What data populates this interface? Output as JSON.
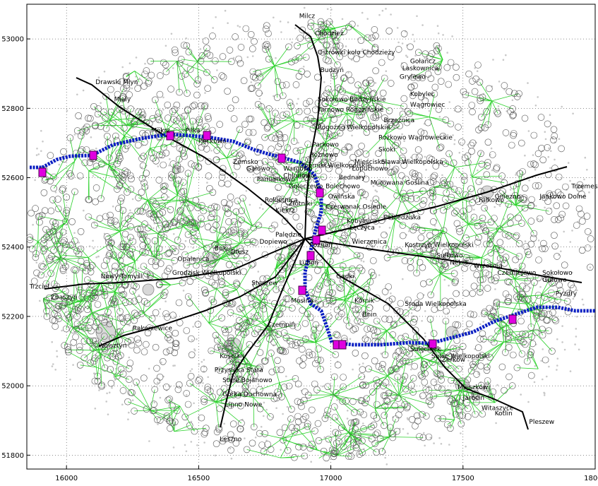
{
  "axes": {
    "x_ticks": [
      "16000",
      "16500",
      "17000",
      "17500",
      "18000"
    ],
    "y_ticks": [
      "53000",
      "52800",
      "52600",
      "52400",
      "52200",
      "52000",
      "51800"
    ]
  },
  "colors": {
    "edges": "#2bd12b",
    "river": "#0b1fc2",
    "stations": "#e000e0",
    "roads": "#000000"
  },
  "places": [
    {
      "name": "Milcz",
      "x": 16880,
      "y": 53060
    },
    {
      "name": "Chodzież",
      "x": 16940,
      "y": 53010
    },
    {
      "name": "Ostrówki koło Chodzieży",
      "x": 16950,
      "y": 52955
    },
    {
      "name": "Budzyń",
      "x": 16960,
      "y": 52905
    },
    {
      "name": "Sokołowo Budzyńskie",
      "x": 16950,
      "y": 52820
    },
    {
      "name": "Tarnowo Rogozińskie",
      "x": 16950,
      "y": 52790
    },
    {
      "name": "Rogoźno Wielkopolskie",
      "x": 16950,
      "y": 52740
    },
    {
      "name": "Parkowo",
      "x": 16930,
      "y": 52690
    },
    {
      "name": "Rożnowo",
      "x": 16920,
      "y": 52660
    },
    {
      "name": "Oborniki Wielkopolskie",
      "x": 16880,
      "y": 52630
    },
    {
      "name": "Gołańcz",
      "x": 17300,
      "y": 52930
    },
    {
      "name": "Laskownica",
      "x": 17270,
      "y": 52910
    },
    {
      "name": "Grylewo",
      "x": 17260,
      "y": 52885
    },
    {
      "name": "Kobylec",
      "x": 17300,
      "y": 52835
    },
    {
      "name": "Wągrowiec",
      "x": 17300,
      "y": 52805
    },
    {
      "name": "Brzeźnica",
      "x": 17200,
      "y": 52760
    },
    {
      "name": "Rożkowo Wągrowieckie",
      "x": 17180,
      "y": 52710
    },
    {
      "name": "Skoki",
      "x": 17180,
      "y": 52675
    },
    {
      "name": "Mieścisko",
      "x": 17090,
      "y": 52640
    },
    {
      "name": "Sława Wielkopolska",
      "x": 17190,
      "y": 52640
    },
    {
      "name": "Łopuchowo",
      "x": 17080,
      "y": 52620
    },
    {
      "name": "Drawski Młyn",
      "x": 16110,
      "y": 52870
    },
    {
      "name": "Mialy",
      "x": 16180,
      "y": 52820
    },
    {
      "name": "Mokrz",
      "x": 16320,
      "y": 52730
    },
    {
      "name": "Piłka",
      "x": 16450,
      "y": 52730
    },
    {
      "name": "Pęckowo",
      "x": 16500,
      "y": 52700
    },
    {
      "name": "Zemsko",
      "x": 16630,
      "y": 52640
    },
    {
      "name": "Gałowo",
      "x": 16680,
      "y": 52620
    },
    {
      "name": "Pamiątkowo",
      "x": 16720,
      "y": 52590
    },
    {
      "name": "Rokietnica",
      "x": 16750,
      "y": 52530
    },
    {
      "name": "Kiekrz",
      "x": 16790,
      "y": 52500
    },
    {
      "name": "Wargowo",
      "x": 16820,
      "y": 52620
    },
    {
      "name": "Chludowo",
      "x": 16820,
      "y": 52600
    },
    {
      "name": "Golęczewo",
      "x": 16840,
      "y": 52570
    },
    {
      "name": "Złotniki",
      "x": 16840,
      "y": 52520
    },
    {
      "name": "Bolechowo",
      "x": 16980,
      "y": 52570
    },
    {
      "name": "Owińska",
      "x": 16990,
      "y": 52540
    },
    {
      "name": "Czerwonak Osiedle",
      "x": 16980,
      "y": 52510
    },
    {
      "name": "Kobylnica",
      "x": 17060,
      "y": 52470
    },
    {
      "name": "Łęczyca",
      "x": 17070,
      "y": 52450
    },
    {
      "name": "Bednary",
      "x": 17030,
      "y": 52595
    },
    {
      "name": "Murowana Goślina",
      "x": 17150,
      "y": 52580
    },
    {
      "name": "Pobiedziska",
      "x": 17200,
      "y": 52480
    },
    {
      "name": "Gniezno",
      "x": 17620,
      "y": 52540
    },
    {
      "name": "Fałkowo",
      "x": 17560,
      "y": 52530
    },
    {
      "name": "Trzemeszno",
      "x": 17910,
      "y": 52570
    },
    {
      "name": "Jankowo Dolne",
      "x": 17790,
      "y": 52540
    },
    {
      "name": "Kostrzyn Wielkopolski",
      "x": 17280,
      "y": 52400
    },
    {
      "name": "Sułkowo",
      "x": 17400,
      "y": 52370
    },
    {
      "name": "Nekla",
      "x": 17450,
      "y": 52350
    },
    {
      "name": "Września",
      "x": 17540,
      "y": 52340
    },
    {
      "name": "Czerniejewo",
      "x": 17630,
      "y": 52320
    },
    {
      "name": "Sokołowo",
      "x": 17800,
      "y": 52320
    },
    {
      "name": "Gutowo",
      "x": 17800,
      "y": 52300
    },
    {
      "name": "Pyzdry",
      "x": 17850,
      "y": 52260
    },
    {
      "name": "Poznań",
      "x": 16920,
      "y": 52400
    },
    {
      "name": "Wierzenica",
      "x": 17080,
      "y": 52410
    },
    {
      "name": "Luboń",
      "x": 16880,
      "y": 52350
    },
    {
      "name": "Kórnik",
      "x": 17090,
      "y": 52240
    },
    {
      "name": "Gądki",
      "x": 17020,
      "y": 52310
    },
    {
      "name": "Bnin",
      "x": 17120,
      "y": 52200
    },
    {
      "name": "Środa Wielkopolska",
      "x": 17280,
      "y": 52230
    },
    {
      "name": "Sulęcinek",
      "x": 17300,
      "y": 52100
    },
    {
      "name": "Solec Wielkopolski",
      "x": 17380,
      "y": 52080
    },
    {
      "name": "Żerków",
      "x": 17420,
      "y": 52070
    },
    {
      "name": "Mieszków",
      "x": 17480,
      "y": 51990
    },
    {
      "name": "Jarocin",
      "x": 17500,
      "y": 51960
    },
    {
      "name": "Witaszyce",
      "x": 17570,
      "y": 51930
    },
    {
      "name": "Kotlin",
      "x": 17620,
      "y": 51915
    },
    {
      "name": "Pleszew",
      "x": 17750,
      "y": 51890
    },
    {
      "name": "Dopiewo",
      "x": 16730,
      "y": 52410
    },
    {
      "name": "Palędzie",
      "x": 16790,
      "y": 52430
    },
    {
      "name": "Buk",
      "x": 16560,
      "y": 52390
    },
    {
      "name": "Otusz",
      "x": 16620,
      "y": 52380
    },
    {
      "name": "Opalenica",
      "x": 16420,
      "y": 52360
    },
    {
      "name": "Grodzisk Wielkopolski",
      "x": 16400,
      "y": 52320
    },
    {
      "name": "Stęszew",
      "x": 16700,
      "y": 52290
    },
    {
      "name": "Nowy Tomyśl",
      "x": 16130,
      "y": 52310
    },
    {
      "name": "Zbąszyń",
      "x": 15940,
      "y": 52250
    },
    {
      "name": "Trzciel",
      "x": 15860,
      "y": 52280
    },
    {
      "name": "Wolsztyn",
      "x": 16120,
      "y": 52110
    },
    {
      "name": "Rakoniewice",
      "x": 16250,
      "y": 52160
    },
    {
      "name": "Mosina",
      "x": 16850,
      "y": 52240
    },
    {
      "name": "Kościan",
      "x": 16580,
      "y": 52080
    },
    {
      "name": "Czempiń",
      "x": 16760,
      "y": 52170
    },
    {
      "name": "Przysieka Stara",
      "x": 16560,
      "y": 52040
    },
    {
      "name": "Stare Bojanowo",
      "x": 16590,
      "y": 52010
    },
    {
      "name": "Górka Duchowna",
      "x": 16590,
      "y": 51970
    },
    {
      "name": "Lipno Nowe",
      "x": 16600,
      "y": 51940
    },
    {
      "name": "Leszno",
      "x": 16580,
      "y": 51840
    }
  ]
}
